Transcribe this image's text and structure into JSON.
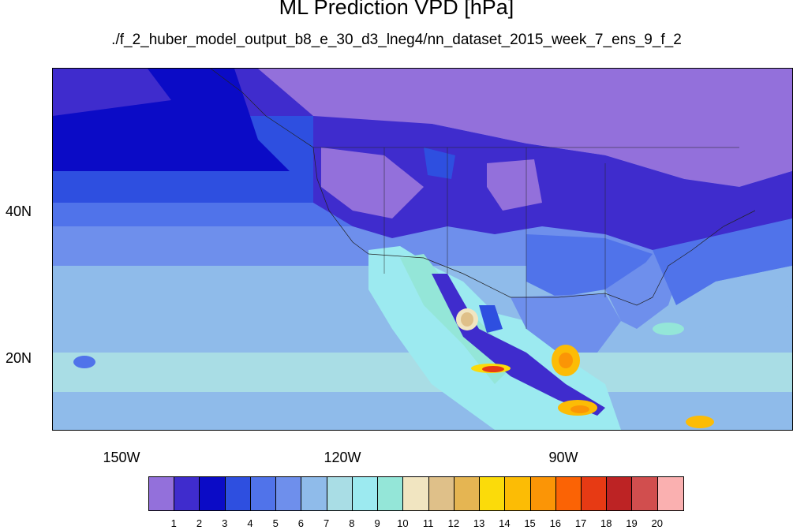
{
  "title": "ML Prediction VPD [hPa]",
  "subtitle": "./f_2_huber_model_output_b8_e_30_d3_lneg4/nn_dataset_2015_week_7_ens_9_f_2",
  "axes": {
    "lat_labels": [
      "40N",
      "20N"
    ],
    "lon_labels": [
      "150W",
      "120W",
      "90W"
    ]
  },
  "legend": {
    "labels": [
      "1",
      "2",
      "3",
      "4",
      "5",
      "6",
      "7",
      "8",
      "9",
      "10",
      "11",
      "12",
      "13",
      "14",
      "15",
      "16",
      "17",
      "18",
      "19",
      "20"
    ],
    "colors": [
      "#9370db",
      "#3f2ccd",
      "#0b0bc6",
      "#2e4fe0",
      "#5073ea",
      "#6e8fec",
      "#8fbbea",
      "#a9dde5",
      "#9ceaf0",
      "#94e6d8",
      "#f1e5c1",
      "#dfc089",
      "#e5b552",
      "#fbdb0a",
      "#fcbc05",
      "#fb9506",
      "#fb6305",
      "#e73a14",
      "#bd2324",
      "#d14e4e",
      "#fab0b0"
    ]
  }
}
